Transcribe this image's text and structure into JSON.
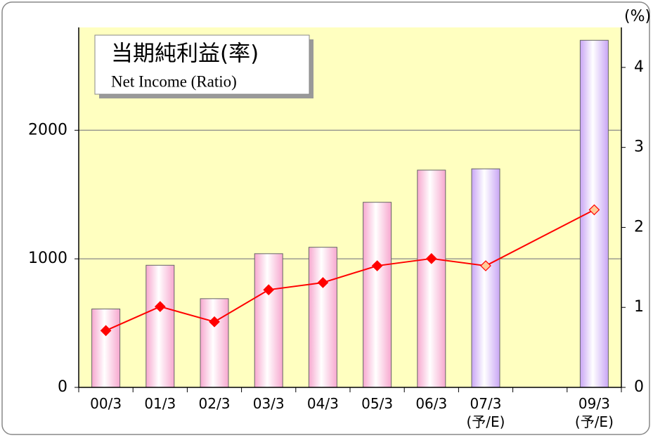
{
  "chart_data": {
    "type": "bar_line",
    "title": "当期純利益(率)",
    "subtitle": "Net Income (Ratio)",
    "y2_label": "(%)",
    "categories": [
      "00/3",
      "01/3",
      "02/3",
      "03/3",
      "04/3",
      "05/3",
      "06/3",
      "07/3\n(予/E)",
      null,
      "09/3\n(予/E)"
    ],
    "series": [
      {
        "values": [
          610,
          950,
          690,
          1040,
          1090,
          1440,
          1690,
          1700,
          null,
          2700
        ],
        "colors": [
          "#f7a8cf",
          "#f7a8cf",
          "#f7a8cf",
          "#f7a8cf",
          "#f7a8cf",
          "#f7a8cf",
          "#f7a8cf",
          "#c9a6f5",
          null,
          "#c9a6f5"
        ]
      },
      {
        "axis": "y2",
        "color": "#ff0000",
        "values": [
          0.71,
          1.01,
          0.82,
          1.22,
          1.31,
          1.52,
          1.61,
          1.52,
          null,
          2.22
        ],
        "marker_colors": [
          "#ff0000",
          "#ff0000",
          "#ff0000",
          "#ff0000",
          "#ff0000",
          "#ff0000",
          "#ff0000",
          "#ffcc99",
          null,
          "#ffcc99"
        ]
      }
    ],
    "ylim": [
      0,
      2800
    ],
    "yticks": [
      0,
      1000,
      2000
    ],
    "y2lim": [
      0,
      4.5
    ],
    "y2ticks": [
      0,
      1,
      2,
      3,
      4
    ],
    "grid": true,
    "plot_background": "#ffffc0"
  }
}
